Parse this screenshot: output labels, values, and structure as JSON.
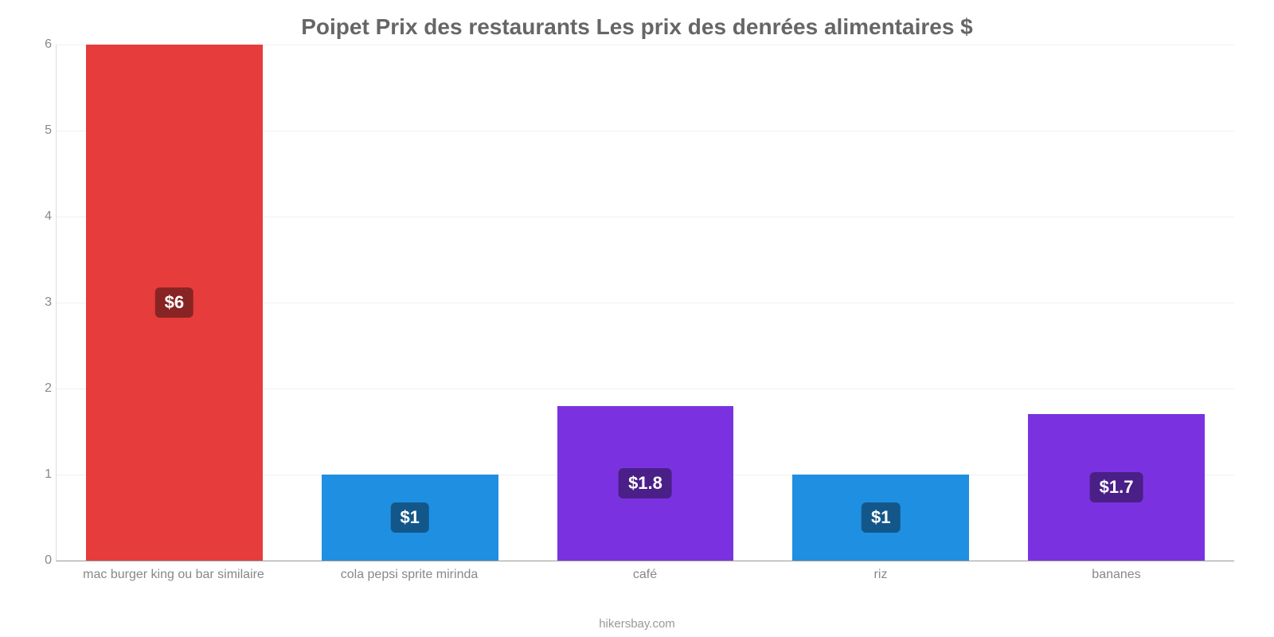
{
  "chart": {
    "type": "bar",
    "title": "Poipet Prix des restaurants Les prix des denrées alimentaires $",
    "title_fontsize": 28,
    "title_color": "#666666",
    "footer": "hikersbay.com",
    "footer_color": "#999999",
    "background_color": "#ffffff",
    "grid_color": "#f0f0f0",
    "axis_color": "#dddddd",
    "baseline_color": "#999999",
    "xlabel_color": "#888888",
    "ylabel_color": "#888888",
    "label_fontsize": 16,
    "y": {
      "min": 0,
      "max": 6,
      "ticks": [
        0,
        1,
        2,
        3,
        4,
        5,
        6
      ]
    },
    "bar_width_pct": 15,
    "bar_gap_pct": 5,
    "series": [
      {
        "category": "mac burger king ou bar similaire",
        "value": 6.0,
        "display": "$6",
        "bar_color": "#e73c3c",
        "badge_color": "#892424"
      },
      {
        "category": "cola pepsi sprite mirinda",
        "value": 1.0,
        "display": "$1",
        "bar_color": "#1f8fe2",
        "badge_color": "#13578a"
      },
      {
        "category": "café",
        "value": 1.8,
        "display": "$1.8",
        "bar_color": "#7a32e0",
        "badge_color": "#4a1f87"
      },
      {
        "category": "riz",
        "value": 1.0,
        "display": "$1",
        "bar_color": "#1f8fe2",
        "badge_color": "#13578a"
      },
      {
        "category": "bananes",
        "value": 1.7,
        "display": "$1.7",
        "bar_color": "#7a32e0",
        "badge_color": "#4a1f87"
      }
    ]
  }
}
